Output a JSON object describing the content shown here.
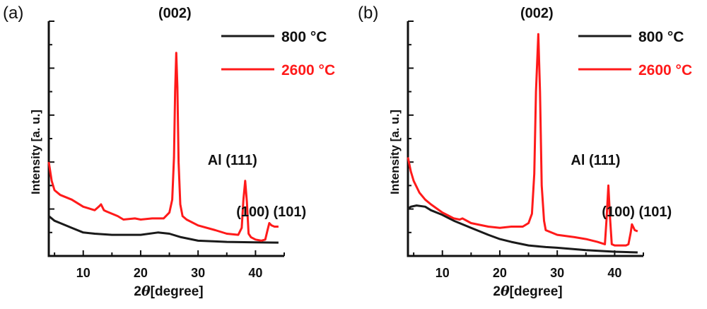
{
  "colors": {
    "black": "#1a1a1a",
    "red": "#ff1a1a"
  },
  "chart_data": [
    {
      "type": "line",
      "panel_label": "(a)",
      "xlabel_prefix": "2",
      "xlabel_symbol": "θ",
      "xlabel_suffix": "[degree]",
      "ylabel": "Intensity [a. u.]",
      "xlim": [
        4,
        45
      ],
      "ylim": [
        0,
        10
      ],
      "xticks": [
        10,
        20,
        30,
        40
      ],
      "xtick_labels": [
        "10",
        "20",
        "30",
        "40"
      ],
      "legend": [
        "800 °C",
        "2600 °C"
      ],
      "legend_placement": "top-right",
      "annotations": [
        {
          "text": "(002)",
          "x": 26.2
        },
        {
          "text": "Al (111)",
          "x": 38.2
        },
        {
          "text": "(100) (101)",
          "x": 42.5
        }
      ],
      "series": [
        {
          "name": "800 °C",
          "color": "#1a1a1a",
          "x": [
            4,
            5,
            6,
            8,
            10,
            12,
            15,
            18,
            20,
            23,
            25,
            27,
            30,
            33,
            35,
            40,
            44
          ],
          "y": [
            1.7,
            1.5,
            1.4,
            1.2,
            1.0,
            0.95,
            0.9,
            0.9,
            0.9,
            1.0,
            0.95,
            0.8,
            0.65,
            0.62,
            0.6,
            0.58,
            0.57
          ]
        },
        {
          "name": "2600 °C",
          "color": "#ff1a1a",
          "x": [
            4,
            4.5,
            5,
            6,
            8,
            10,
            12,
            12.7,
            13.1,
            13.6,
            14,
            16,
            17,
            19,
            20,
            22,
            24,
            25,
            25.5,
            25.8,
            26.0,
            26.2,
            26.4,
            26.6,
            26.9,
            27.3,
            28,
            30,
            33,
            35,
            37,
            37.6,
            37.9,
            38.2,
            38.5,
            38.8,
            39.2,
            40,
            41,
            41.7,
            42.1,
            42.4,
            42.8,
            43.3,
            44
          ],
          "y": [
            4.0,
            3.2,
            2.8,
            2.6,
            2.4,
            2.1,
            1.95,
            2.1,
            2.2,
            1.95,
            1.9,
            1.7,
            1.55,
            1.6,
            1.55,
            1.6,
            1.6,
            1.85,
            2.4,
            4.2,
            7.0,
            8.65,
            7.2,
            4.0,
            2.2,
            1.7,
            1.55,
            1.3,
            1.1,
            0.95,
            0.9,
            1.2,
            2.4,
            3.2,
            2.3,
            0.95,
            0.8,
            0.7,
            0.65,
            0.7,
            1.1,
            1.4,
            1.3,
            1.25,
            1.25
          ]
        }
      ]
    },
    {
      "type": "line",
      "panel_label": "(b)",
      "xlabel_prefix": "2",
      "xlabel_symbol": "θ",
      "xlabel_suffix": "[degree]",
      "ylabel": "Intensity [a. u.]",
      "xlim": [
        4,
        45
      ],
      "ylim": [
        0,
        10
      ],
      "xticks": [
        10,
        20,
        30,
        40
      ],
      "xtick_labels": [
        "10",
        "20",
        "30",
        "40"
      ],
      "legend": [
        "800 °C",
        "2600 °C"
      ],
      "legend_placement": "top-right",
      "annotations": [
        {
          "text": "(002)",
          "x": 26.7
        },
        {
          "text": "Al (111)",
          "x": 38.9
        },
        {
          "text": "(100) (101)",
          "x": 43
        }
      ],
      "series": [
        {
          "name": "800 °C",
          "color": "#1a1a1a",
          "x": [
            4,
            4.5,
            5.5,
            7,
            8,
            10,
            12,
            15,
            18,
            20,
            22,
            25,
            28,
            30,
            35,
            40,
            44
          ],
          "y": [
            2.0,
            2.1,
            2.15,
            2.1,
            1.95,
            1.75,
            1.5,
            1.2,
            0.9,
            0.72,
            0.6,
            0.45,
            0.38,
            0.35,
            0.25,
            0.18,
            0.15
          ]
        },
        {
          "name": "2600 °C",
          "color": "#ff1a1a",
          "x": [
            4,
            4.5,
            5,
            6,
            7,
            8,
            10,
            12,
            13,
            13.5,
            15,
            18,
            20,
            22,
            24,
            25,
            25.6,
            26.0,
            26.3,
            26.7,
            27.0,
            27.3,
            27.7,
            28,
            30,
            33,
            35,
            37,
            38.3,
            38.6,
            38.9,
            39.2,
            39.5,
            40,
            42,
            42.4,
            42.8,
            43.0,
            43.5,
            44
          ],
          "y": [
            4.2,
            3.6,
            3.2,
            2.7,
            2.4,
            2.2,
            1.85,
            1.6,
            1.55,
            1.6,
            1.4,
            1.25,
            1.2,
            1.25,
            1.25,
            1.4,
            1.8,
            3.5,
            7.0,
            9.45,
            7.0,
            3.0,
            1.5,
            1.1,
            0.9,
            0.8,
            0.72,
            0.6,
            0.5,
            1.6,
            3.0,
            1.6,
            0.5,
            0.45,
            0.45,
            0.5,
            1.0,
            1.35,
            1.1,
            1.05
          ]
        }
      ]
    }
  ]
}
